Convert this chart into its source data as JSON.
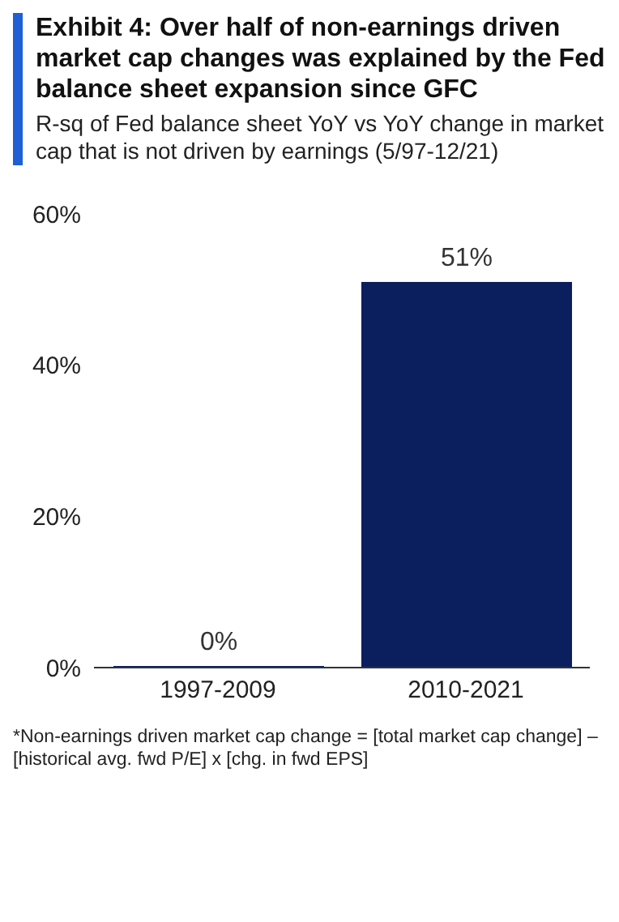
{
  "chart_data": {
    "type": "bar",
    "title": "Exhibit 4: Over half of non-earnings driven market cap changes was explained by the Fed balance sheet expansion since GFC",
    "subtitle": "R-sq of Fed balance sheet YoY vs YoY change in market cap that is not driven by earnings (5/97-12/21)",
    "categories": [
      "1997-2009",
      "2010-2021"
    ],
    "values": [
      0,
      51
    ],
    "color": "#0b1f5e",
    "value_labels": [
      "0%",
      "51%"
    ],
    "ylim": [
      0,
      60
    ],
    "yticks": [
      {
        "value": 0,
        "label": "0%"
      },
      {
        "value": 20,
        "label": "20%"
      },
      {
        "value": 40,
        "label": "40%"
      },
      {
        "value": 60,
        "label": "60%"
      }
    ],
    "grid": false,
    "annotations": [
      "*Non-earnings driven market cap change = [total market cap change] – [historical avg. fwd P/E] x [chg. in fwd EPS]"
    ]
  }
}
